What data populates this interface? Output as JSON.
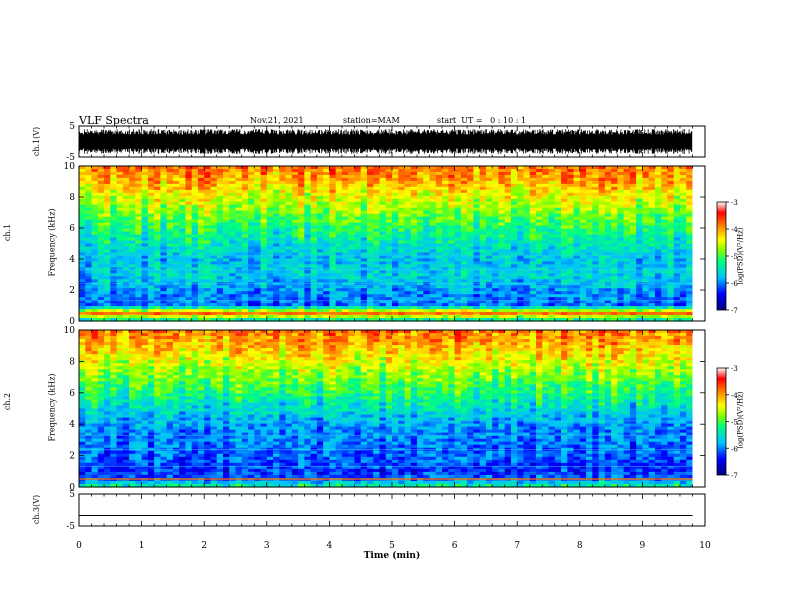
{
  "header": {
    "title": "VLF Spectra",
    "date": "Nov.21, 2021",
    "station": "station=MAM",
    "start": "start  UT =   0 : 10 : 1"
  },
  "colors": {
    "spectrum_scale": [
      "#000080",
      "#0000ff",
      "#00a0ff",
      "#00ffff",
      "#40ff80",
      "#a0ff00",
      "#ffff00",
      "#ffa000",
      "#ff3000",
      "#ff0000"
    ],
    "waveform": "#000000",
    "colorbar_top": "#ffffff"
  },
  "chart_data": [
    {
      "type": "line",
      "panel": "ch1-waveform",
      "ylabel": "ch.1(V)",
      "ylim": [
        -5,
        5
      ],
      "yticks": [
        "5",
        "-5"
      ],
      "xlim": [
        0,
        10
      ],
      "description_values": "dense noise waveform spanning approximately -4 to 4 V from 0 to 9.8 min"
    },
    {
      "type": "heatmap",
      "panel": "ch1-spectrogram",
      "ylabel_top": "ch.1",
      "ylabel": "Frequency  (kHz)",
      "ylim": [
        0,
        10
      ],
      "yticks": [
        "0",
        "2",
        "4",
        "6",
        "8",
        "10"
      ],
      "xlim": [
        0,
        10
      ],
      "data_end_min": 9.8,
      "colorbar": {
        "label": "log(PSD)(V²/Hz)",
        "range": [
          -7,
          -3
        ],
        "ticks": [
          "-3",
          "-4",
          "-5",
          "-6",
          "-7"
        ]
      },
      "power_vs_frequency": {
        "frequency_kHz": [
          0,
          0.5,
          1,
          2,
          3,
          4,
          5,
          6,
          7,
          8,
          9,
          10
        ],
        "log_psd": [
          -5.5,
          -3.5,
          -6,
          -5.8,
          -5.5,
          -5.6,
          -5.3,
          -5.0,
          -4.6,
          -4.2,
          -3.8,
          -3.5
        ]
      }
    },
    {
      "type": "heatmap",
      "panel": "ch2-spectrogram",
      "ylabel_top": "ch.2",
      "ylabel": "Frequency  (kHz)",
      "ylim": [
        0,
        10
      ],
      "yticks": [
        "0",
        "2",
        "4",
        "6",
        "8",
        "10"
      ],
      "xlim": [
        0,
        10
      ],
      "data_end_min": 9.8,
      "colorbar": {
        "label": "log(PSD)(V²/Hz)",
        "range": [
          -7,
          -3
        ],
        "ticks": [
          "-3",
          "-4",
          "-5",
          "-6",
          "-7"
        ]
      },
      "power_vs_frequency": {
        "frequency_kHz": [
          0,
          0.5,
          1,
          2,
          3,
          4,
          5,
          6,
          7,
          8,
          9,
          10
        ],
        "log_psd": [
          -5.0,
          -6.0,
          -6.2,
          -6.0,
          -5.9,
          -5.8,
          -5.4,
          -5.0,
          -4.6,
          -4.2,
          -3.8,
          -3.5
        ]
      }
    },
    {
      "type": "line",
      "panel": "ch3-waveform",
      "ylabel": "ch.3(V)",
      "ylim": [
        -5,
        5
      ],
      "yticks": [
        "5",
        "-5"
      ],
      "xlim": [
        0,
        10
      ],
      "x": [
        0,
        9.8
      ],
      "y": [
        -1.7,
        -1.7
      ]
    }
  ],
  "xaxis": {
    "label": "Time  (min)",
    "ticks": [
      "0",
      "1",
      "2",
      "3",
      "4",
      "5",
      "6",
      "7",
      "8",
      "9",
      "10"
    ]
  }
}
